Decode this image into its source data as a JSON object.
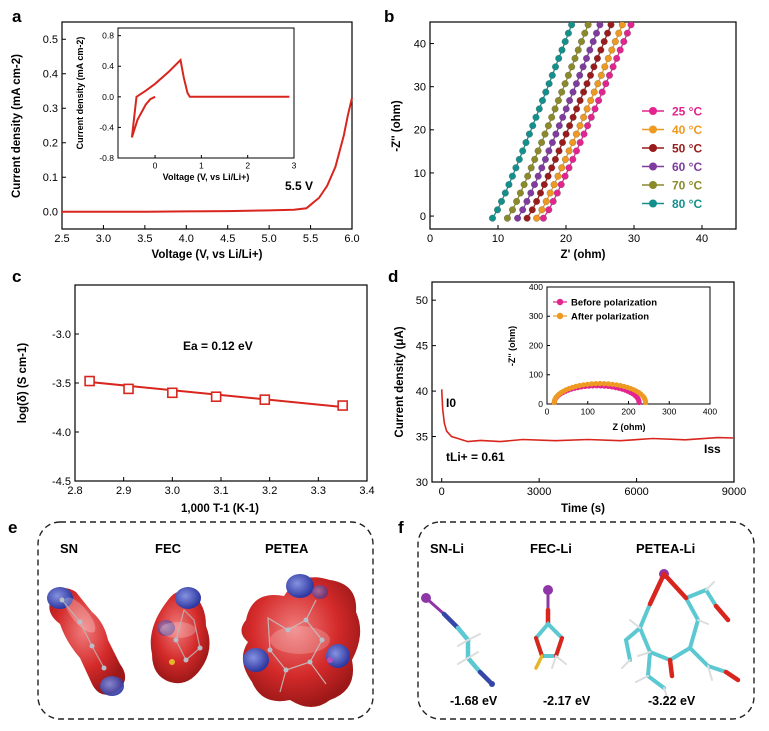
{
  "colors": {
    "red": "#d8261e",
    "teal": "#13908c",
    "pink": "#e3248f",
    "orange": "#ee9a22",
    "darkred": "#991b1b",
    "purple": "#7f3b9e",
    "olive": "#8a8a2a",
    "blue": "#3447a8",
    "cyan": "#5cc8d1"
  },
  "panels": {
    "a": "a",
    "b": "b",
    "c": "c",
    "d": "d",
    "e": "e",
    "f": "f"
  },
  "chart_data": [
    {
      "id": "a",
      "type": "line",
      "title": "",
      "xlabel": "Voltage (V, vs Li/Li+)",
      "ylabel": "Current density (mA cm-2)",
      "xlim": [
        2.5,
        6.0
      ],
      "ylim": [
        -0.05,
        0.55
      ],
      "xticks": [
        "2.5",
        "3.0",
        "3.5",
        "4.0",
        "4.5",
        "5.0",
        "5.5",
        "6.0"
      ],
      "yticks": [
        "0.0",
        "0.1",
        "0.2",
        "0.3",
        "0.4",
        "0.5"
      ],
      "annotation": "5.5 V",
      "x": [
        2.5,
        3.0,
        3.5,
        4.0,
        4.5,
        5.0,
        5.3,
        5.45,
        5.5,
        5.55,
        5.6,
        5.7,
        5.8,
        5.9,
        5.95,
        6.0
      ],
      "y": [
        0.0,
        0.0,
        0.0,
        0.001,
        0.002,
        0.004,
        0.006,
        0.01,
        0.02,
        0.03,
        0.04,
        0.075,
        0.13,
        0.22,
        0.28,
        0.33
      ],
      "inset": {
        "xlabel": "Voltage (V, vs Li/Li+)",
        "ylabel": "Current density (mA cm-2)",
        "xlim": [
          -0.8,
          3.0
        ],
        "ylim": [
          -0.8,
          0.9
        ],
        "xticks": [
          "0",
          "1",
          "2",
          "3"
        ],
        "yticks": [
          "-0.8",
          "-0.4",
          "0.0",
          "0.4",
          "0.8"
        ],
        "x": [
          2.9,
          1.0,
          0.75,
          0.7,
          0.62,
          0.55,
          0.3,
          0.0,
          -0.2,
          -0.4,
          -0.5,
          -0.38,
          -0.2,
          -0.1,
          0.0
        ],
        "y": [
          0.0,
          0.0,
          0.0,
          0.05,
          0.25,
          0.48,
          0.33,
          0.17,
          0.08,
          0.0,
          -0.53,
          -0.3,
          -0.1,
          -0.03,
          0.0
        ]
      }
    },
    {
      "id": "b",
      "type": "scatter",
      "title": "",
      "xlabel": "Z' (ohm)",
      "ylabel": "-Z'' (ohm)",
      "xlim": [
        0,
        45
      ],
      "ylim": [
        -3,
        45
      ],
      "xticks": [
        "0",
        "10",
        "20",
        "30",
        "40"
      ],
      "yticks": [
        "0",
        "10",
        "20",
        "30",
        "40"
      ],
      "legend": "right",
      "series": [
        {
          "name": "25 °C",
          "color": "#e3248f",
          "x0": 16.8,
          "slope": 4.0
        },
        {
          "name": "40 °C",
          "color": "#ee9a22",
          "x0": 15.8,
          "slope": 4.1
        },
        {
          "name": "50 °C",
          "color": "#991b1b",
          "x0": 14.4,
          "slope": 4.2
        },
        {
          "name": "60 °C",
          "color": "#7f3b9e",
          "x0": 13.0,
          "slope": 4.3
        },
        {
          "name": "70 °C",
          "color": "#8a8a2a",
          "x0": 11.5,
          "slope": 4.4
        },
        {
          "name": "80 °C",
          "color": "#13908c",
          "x0": 9.3,
          "slope": 4.5
        }
      ]
    },
    {
      "id": "c",
      "type": "line",
      "title": "",
      "xlabel": "1,000 T-1 (K-1)",
      "ylabel": "log(δ) (S cm-1)",
      "xlim": [
        2.8,
        3.4
      ],
      "ylim": [
        -4.5,
        -2.5
      ],
      "xticks": [
        "2.8",
        "2.9",
        "3.0",
        "3.1",
        "3.2",
        "3.3",
        "3.4"
      ],
      "yticks": [
        "-3.0",
        "-3.5",
        "-4.0",
        "-4.5"
      ],
      "annotation": "Ea = 0.12 eV",
      "x": [
        2.83,
        2.91,
        3.0,
        3.09,
        3.19,
        3.35
      ],
      "y": [
        -3.48,
        -3.56,
        -3.6,
        -3.64,
        -3.67,
        -3.73
      ],
      "fit": [
        [
          2.83,
          -3.49
        ],
        [
          3.36,
          -3.75
        ]
      ]
    },
    {
      "id": "d",
      "type": "line",
      "title": "",
      "xlabel": "Time (s)",
      "ylabel": "Current density (μA)",
      "xlim": [
        -300,
        9000
      ],
      "ylim": [
        30,
        52
      ],
      "xticks": [
        "0",
        "3000",
        "6000",
        "9000"
      ],
      "yticks": [
        "30",
        "35",
        "40",
        "45",
        "50"
      ],
      "labels": {
        "i0": "I0",
        "iss": "Iss",
        "t": "tLi+ = 0.61"
      },
      "x": [
        0,
        30,
        80,
        150,
        300,
        500,
        800,
        1200,
        1800,
        2500,
        3500,
        4500,
        5500,
        6500,
        7500,
        8500,
        9000
      ],
      "y": [
        40.2,
        38.0,
        36.5,
        35.6,
        35.0,
        34.7,
        34.5,
        34.5,
        34.5,
        34.6,
        34.6,
        34.6,
        34.6,
        34.7,
        34.7,
        34.8,
        34.9
      ],
      "inset": {
        "xlabel": "Z (ohm)",
        "ylabel": "-Z'' (ohm)",
        "xlim": [
          0,
          400
        ],
        "ylim": [
          0,
          400
        ],
        "xticks": [
          "0",
          "100",
          "200",
          "300",
          "400"
        ],
        "yticks": [
          "0",
          "100",
          "200",
          "300",
          "400"
        ],
        "series": [
          {
            "name": "Before polarization",
            "color": "#e3248f",
            "center": 122,
            "radius": 104,
            "yscale": 0.55
          },
          {
            "name": "After polarization",
            "color": "#ee9a22",
            "center": 130,
            "radius": 112,
            "yscale": 0.58
          }
        ]
      }
    }
  ],
  "molecules_e": {
    "sn": "SN",
    "fec": "FEC",
    "petea": "PETEA"
  },
  "molecules_f": [
    {
      "name": "SN-Li",
      "energy": "-1.68 eV"
    },
    {
      "name": "FEC-Li",
      "energy": "-2.17 eV"
    },
    {
      "name": "PETEA-Li",
      "energy": "-3.22 eV"
    }
  ]
}
